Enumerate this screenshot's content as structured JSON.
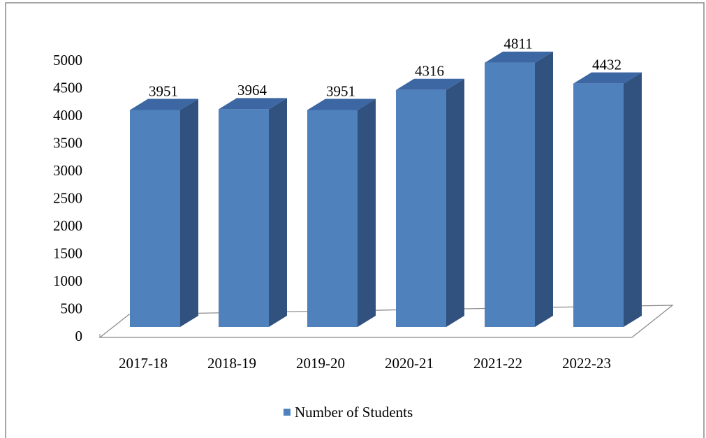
{
  "chart_data": {
    "type": "bar3d",
    "categories": [
      "2017-18",
      "2018-19",
      "2019-20",
      "2020-21",
      "2021-22",
      "2022-23"
    ],
    "series": [
      {
        "name": "Number of Students",
        "color": "#4f81bd",
        "values": [
          3951,
          3964,
          3951,
          4316,
          4811,
          4432
        ]
      }
    ],
    "ylim": [
      0,
      5000
    ],
    "yticks": [
      0,
      500,
      1000,
      1500,
      2000,
      2500,
      3000,
      3500,
      4000,
      4500,
      5000
    ],
    "grid": false,
    "legend": "bottom"
  }
}
